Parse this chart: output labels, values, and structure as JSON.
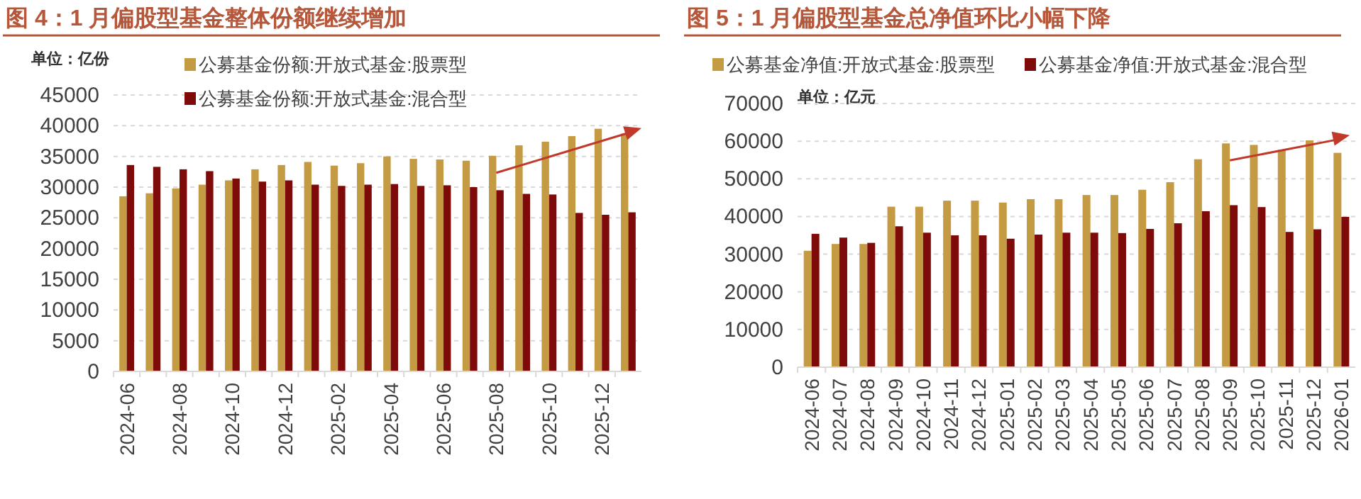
{
  "chart_data": [
    {
      "type": "bar",
      "title": "图 4：1 月偏股型基金整体份额继续增加",
      "ylabel": "单位：亿份",
      "categories": [
        "2024-06",
        null,
        "2024-08",
        null,
        "2024-10",
        null,
        "2024-12",
        null,
        "2025-02",
        null,
        "2025-04",
        null,
        "2025-06",
        null,
        "2025-08",
        null,
        "2025-10",
        null,
        "2025-12",
        null
      ],
      "series": [
        {
          "name": "公募基金份额:开放式基金:股票型",
          "color": "#c49a42",
          "values": [
            28500,
            29000,
            29800,
            30400,
            31100,
            32900,
            33600,
            34100,
            33500,
            33900,
            35000,
            34600,
            34500,
            34300,
            35100,
            36800,
            37400,
            38300,
            39500,
            38700
          ]
        },
        {
          "name": "公募基金份额:开放式基金:混合型",
          "color": "#7f0a0a",
          "values": [
            33600,
            33300,
            32900,
            32600,
            31400,
            30900,
            31100,
            30400,
            30200,
            30400,
            30500,
            30200,
            30300,
            30000,
            29500,
            28900,
            28800,
            25800,
            25500,
            25900
          ]
        }
      ],
      "ylim": [
        0,
        45000
      ],
      "yticks": [
        0,
        5000,
        10000,
        15000,
        20000,
        25000,
        30000,
        35000,
        40000,
        45000
      ],
      "grid": "y",
      "legend": "top"
    },
    {
      "type": "bar",
      "title": "图 5：1 月偏股型基金总净值环比小幅下降",
      "ylabel": "单位：亿元",
      "categories": [
        "2024-06",
        "2024-07",
        "2024-08",
        "2024-09",
        "2024-10",
        "2024-11",
        "2024-12",
        "2025-01",
        "2025-02",
        "2025-03",
        "2025-04",
        "2025-05",
        "2025-06",
        "2025-07",
        "2025-08",
        "2025-09",
        "2025-10",
        "2025-11",
        "2025-12",
        "2026-01"
      ],
      "series": [
        {
          "name": "公募基金净值:开放式基金:股票型",
          "color": "#c49a42",
          "values": [
            30900,
            32700,
            32700,
            42600,
            42600,
            44200,
            44200,
            43700,
            44600,
            44600,
            45700,
            45700,
            47100,
            49100,
            55200,
            59400,
            59000,
            57700,
            60200,
            56900
          ]
        },
        {
          "name": "公募基金净值:开放式基金:混合型",
          "color": "#7f0a0a",
          "values": [
            35400,
            34400,
            33000,
            37400,
            35700,
            35000,
            35000,
            34100,
            35200,
            35700,
            35700,
            35600,
            36700,
            38200,
            41400,
            43000,
            42500,
            35900,
            36600,
            39900
          ]
        }
      ],
      "ylim": [
        0,
        70000
      ],
      "yticks": [
        0,
        10000,
        20000,
        30000,
        40000,
        50000,
        60000,
        70000
      ],
      "grid": "y",
      "legend": "top"
    }
  ]
}
